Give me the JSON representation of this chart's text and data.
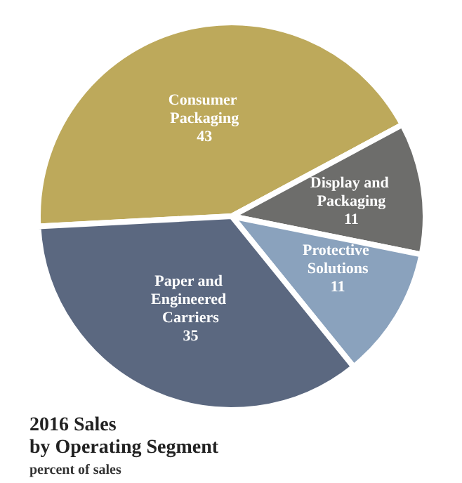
{
  "chart_data": {
    "type": "pie",
    "title": "2016 Sales\nby Operating Segment",
    "subtitle": "percent of sales",
    "categories": [
      "Consumer Packaging",
      "Display and Packaging",
      "Protective Solutions",
      "Paper and Engineered Carriers"
    ],
    "values": [
      43,
      11,
      11,
      35
    ],
    "colors": [
      "#bda95b",
      "#6d6d6b",
      "#8aa2bd",
      "#5b6880"
    ],
    "data_labels": true,
    "legend": false
  }
}
